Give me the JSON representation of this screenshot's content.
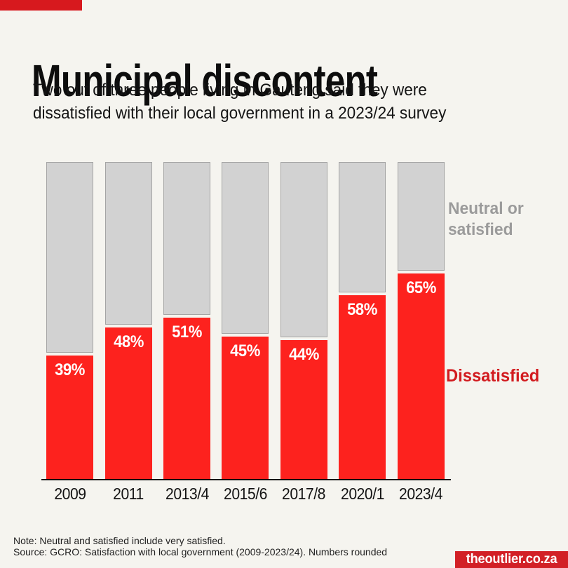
{
  "page": {
    "background": "#F5F4EF"
  },
  "brand": {
    "strip_color": "#D7191E",
    "badge_color": "#D22026",
    "badge_text": "theoutlier.co.za"
  },
  "header": {
    "title": "Municipal discontent",
    "subtitle_lines": [
      "Two out of three people living in Gauteng said they were",
      "dissatisfied with their local government in a 2023/24 survey"
    ]
  },
  "legend": {
    "neutral_label": "Neutral or satisfied",
    "dissatisfied_label": "Dissatisfied",
    "neutral_text_color": "#9B9B9B",
    "dissatisfied_text_color": "#D21B1F"
  },
  "footer": {
    "note": "Note: Neutral and satisfied include very satisfied.",
    "source": "Source: GCRO: Satisfaction with local government (2009-2023/24). Numbers rounded"
  },
  "chart_data": {
    "type": "bar",
    "stacked": true,
    "unit": "%",
    "title": "Municipal discontent",
    "categories": [
      "2009",
      "2011",
      "2013/4",
      "2015/6",
      "2017/8",
      "2020/1",
      "2023/4"
    ],
    "series": [
      {
        "name": "Dissatisfied",
        "color": "#FD221E",
        "values": [
          39,
          48,
          51,
          45,
          44,
          58,
          65
        ]
      },
      {
        "name": "Neutral or satisfied",
        "color": "#D2D2D2",
        "values": [
          61,
          52,
          49,
          55,
          56,
          42,
          35
        ]
      }
    ],
    "data_label_format": "value%",
    "data_label_color": "#FFFFFF",
    "ylim": [
      0,
      100
    ],
    "grid": false,
    "legend_position": "right",
    "gray_border_color": "#A4A4A4"
  }
}
